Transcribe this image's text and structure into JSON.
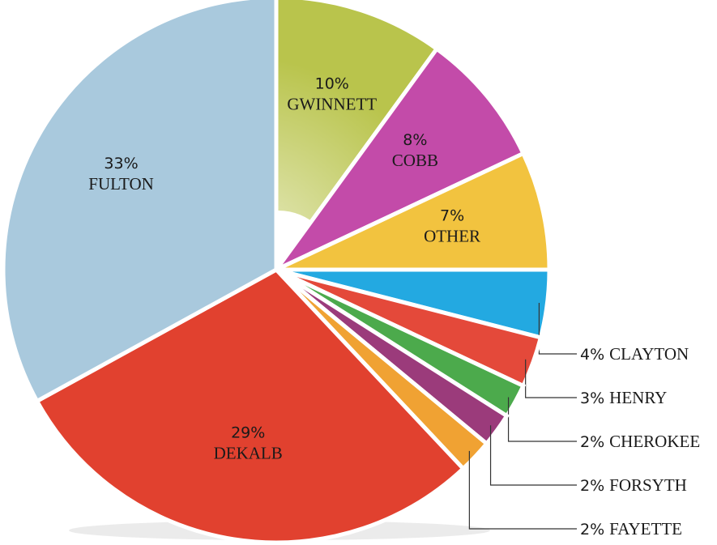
{
  "chart_data": {
    "type": "pie",
    "categories": [
      "GWINNETT",
      "COBB",
      "OTHER",
      "CLAYTON",
      "HENRY",
      "CHEROKEE",
      "FORSYTH",
      "FAYETTE",
      "DEKALB",
      "FULTON"
    ],
    "values": [
      10,
      8,
      7,
      4,
      3,
      2,
      2,
      2,
      29,
      33
    ],
    "value_labels": [
      "10%",
      "8%",
      "7%",
      "4%",
      "3%",
      "2%",
      "2%",
      "2%",
      "29%",
      "33%"
    ],
    "colors": [
      "#b9c44c",
      "#c34ba9",
      "#f2c33f",
      "#23a9e1",
      "#e4493a",
      "#4caa4c",
      "#9b3b7b",
      "#f0a233",
      "#e1412f",
      "#a9c9dd"
    ]
  }
}
